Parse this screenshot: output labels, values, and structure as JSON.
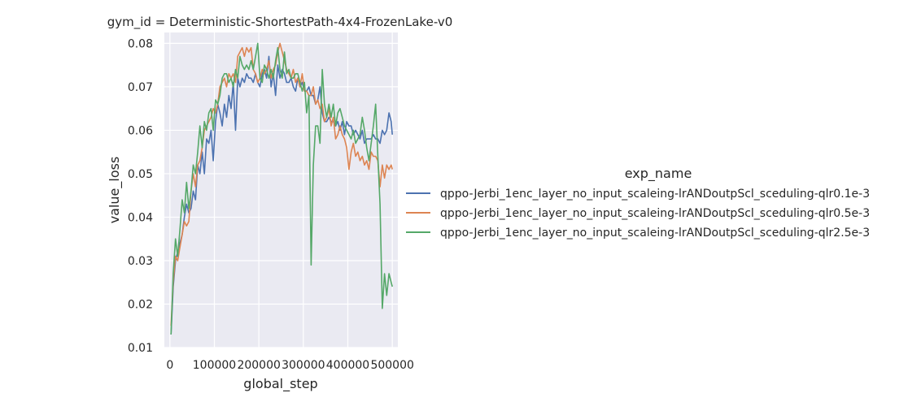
{
  "chart_data": {
    "type": "line",
    "title": "gym_id = Deterministic-ShortestPath-4x4-FrozenLake-v0",
    "xlabel": "global_step",
    "ylabel": "value_loss",
    "xlim": [
      -12500,
      512500
    ],
    "ylim": [
      0.01,
      0.0825
    ],
    "xticks": [
      0,
      100000,
      200000,
      300000,
      400000,
      500000
    ],
    "xtick_labels": [
      "0",
      "100000",
      "200000",
      "300000",
      "400000",
      "500000"
    ],
    "yticks": [
      0.01,
      0.02,
      0.03,
      0.04,
      0.05,
      0.06,
      0.07,
      0.08
    ],
    "ytick_labels": [
      "0.01",
      "0.02",
      "0.03",
      "0.04",
      "0.05",
      "0.06",
      "0.07",
      "0.08"
    ],
    "grid": true,
    "background": "#eaeaf2",
    "legend": {
      "title": "exp_name",
      "placement": "right, outside"
    },
    "series": [
      {
        "name": "qppo-Jerbi_1enc_layer_no_input_scaleing-lrANDoutpScl_sceduling-qlr0.1e-3",
        "color": "#4c72b0",
        "x": [
          2500,
          7500,
          12500,
          17500,
          22500,
          27500,
          32500,
          37500,
          42500,
          47500,
          52500,
          57500,
          62500,
          67500,
          72500,
          77500,
          82500,
          87500,
          92500,
          97500,
          102500,
          107500,
          112500,
          117500,
          122500,
          127500,
          132500,
          137500,
          142500,
          147500,
          152500,
          157500,
          162500,
          167500,
          172500,
          177500,
          182500,
          187500,
          192500,
          197500,
          202500,
          207500,
          212500,
          217500,
          222500,
          227500,
          232500,
          237500,
          242500,
          247500,
          252500,
          257500,
          262500,
          267500,
          272500,
          277500,
          282500,
          287500,
          292500,
          297500,
          302500,
          307500,
          312500,
          317500,
          322500,
          327500,
          332500,
          337500,
          342500,
          347500,
          352500,
          357500,
          362500,
          367500,
          372500,
          377500,
          382500,
          387500,
          392500,
          397500,
          402500,
          407500,
          412500,
          417500,
          422500,
          427500,
          432500,
          437500,
          442500,
          447500,
          452500,
          457500,
          462500,
          467500,
          472500,
          477500,
          482500,
          487500,
          492500,
          497500,
          500000
        ],
        "y": [
          0.013,
          0.024,
          0.03,
          0.032,
          0.034,
          0.036,
          0.04,
          0.043,
          0.041,
          0.042,
          0.046,
          0.044,
          0.052,
          0.05,
          0.055,
          0.05,
          0.058,
          0.057,
          0.06,
          0.053,
          0.062,
          0.066,
          0.064,
          0.061,
          0.066,
          0.063,
          0.068,
          0.065,
          0.071,
          0.06,
          0.072,
          0.07,
          0.072,
          0.071,
          0.073,
          0.072,
          0.072,
          0.071,
          0.073,
          0.071,
          0.07,
          0.073,
          0.074,
          0.072,
          0.077,
          0.07,
          0.073,
          0.068,
          0.075,
          0.072,
          0.074,
          0.073,
          0.071,
          0.071,
          0.072,
          0.07,
          0.069,
          0.072,
          0.07,
          0.071,
          0.069,
          0.069,
          0.07,
          0.068,
          0.068,
          0.066,
          0.067,
          0.07,
          0.064,
          0.062,
          0.062,
          0.063,
          0.062,
          0.062,
          0.061,
          0.062,
          0.06,
          0.062,
          0.059,
          0.062,
          0.061,
          0.061,
          0.059,
          0.06,
          0.059,
          0.058,
          0.06,
          0.057,
          0.058,
          0.058,
          0.058,
          0.059,
          0.058,
          0.058,
          0.057,
          0.06,
          0.059,
          0.06,
          0.064,
          0.062,
          0.059
        ]
      },
      {
        "name": "qppo-Jerbi_1enc_layer_no_input_scaleing-lrANDoutpScl_sceduling-qlr0.5e-3",
        "color": "#dd8452",
        "x": [
          2500,
          7500,
          12500,
          17500,
          22500,
          27500,
          32500,
          37500,
          42500,
          47500,
          52500,
          57500,
          62500,
          67500,
          72500,
          77500,
          82500,
          87500,
          92500,
          97500,
          102500,
          107500,
          112500,
          117500,
          122500,
          127500,
          132500,
          137500,
          142500,
          147500,
          152500,
          157500,
          162500,
          167500,
          172500,
          177500,
          182500,
          187500,
          192500,
          197500,
          202500,
          207500,
          212500,
          217500,
          222500,
          227500,
          232500,
          237500,
          242500,
          247500,
          252500,
          257500,
          262500,
          267500,
          272500,
          277500,
          282500,
          287500,
          292500,
          297500,
          302500,
          307500,
          312500,
          317500,
          322500,
          327500,
          332500,
          337500,
          342500,
          347500,
          352500,
          357500,
          362500,
          367500,
          372500,
          377500,
          382500,
          387500,
          392500,
          397500,
          402500,
          407500,
          412500,
          417500,
          422500,
          427500,
          432500,
          437500,
          442500,
          447500,
          452500,
          457500,
          462500,
          467500,
          472500,
          477500,
          482500,
          487500,
          492500,
          497500,
          500000
        ],
        "y": [
          0.015,
          0.025,
          0.031,
          0.03,
          0.033,
          0.036,
          0.039,
          0.038,
          0.039,
          0.046,
          0.05,
          0.047,
          0.052,
          0.053,
          0.056,
          0.06,
          0.061,
          0.062,
          0.063,
          0.065,
          0.064,
          0.066,
          0.07,
          0.071,
          0.072,
          0.07,
          0.073,
          0.072,
          0.073,
          0.071,
          0.077,
          0.078,
          0.079,
          0.077,
          0.079,
          0.078,
          0.079,
          0.074,
          0.073,
          0.071,
          0.072,
          0.074,
          0.073,
          0.074,
          0.076,
          0.072,
          0.074,
          0.075,
          0.078,
          0.08,
          0.078,
          0.076,
          0.074,
          0.073,
          0.072,
          0.074,
          0.071,
          0.072,
          0.07,
          0.073,
          0.069,
          0.069,
          0.068,
          0.068,
          0.07,
          0.066,
          0.067,
          0.065,
          0.066,
          0.062,
          0.063,
          0.065,
          0.061,
          0.063,
          0.058,
          0.059,
          0.061,
          0.059,
          0.058,
          0.056,
          0.051,
          0.055,
          0.057,
          0.054,
          0.055,
          0.053,
          0.054,
          0.052,
          0.053,
          0.051,
          0.055,
          0.054,
          0.054,
          0.053,
          0.047,
          0.052,
          0.049,
          0.052,
          0.051,
          0.052,
          0.051
        ]
      },
      {
        "name": "qppo-Jerbi_1enc_layer_no_input_scaleing-lrANDoutpScl_sceduling-qlr2.5e-3",
        "color": "#55a868",
        "x": [
          2500,
          7500,
          12500,
          17500,
          22500,
          27500,
          32500,
          37500,
          42500,
          47500,
          52500,
          57500,
          62500,
          67500,
          72500,
          77500,
          82500,
          87500,
          92500,
          97500,
          102500,
          107500,
          112500,
          117500,
          122500,
          127500,
          132500,
          137500,
          142500,
          147500,
          152500,
          157500,
          162500,
          167500,
          172500,
          177500,
          182500,
          187500,
          192500,
          197500,
          202500,
          207500,
          212500,
          217500,
          222500,
          227500,
          232500,
          237500,
          242500,
          247500,
          252500,
          257500,
          262500,
          267500,
          272500,
          277500,
          282500,
          287500,
          292500,
          297500,
          302500,
          307500,
          312500,
          317500,
          322500,
          327500,
          332500,
          337500,
          342500,
          347500,
          352500,
          357500,
          362500,
          367500,
          372500,
          377500,
          382500,
          387500,
          392500,
          397500,
          402500,
          407500,
          412500,
          417500,
          422500,
          427500,
          432500,
          437500,
          442500,
          447500,
          452500,
          457500,
          462500,
          467500,
          472500,
          477500,
          482500,
          487500,
          492500,
          497500,
          500000
        ],
        "y": [
          0.013,
          0.027,
          0.035,
          0.031,
          0.037,
          0.044,
          0.041,
          0.048,
          0.042,
          0.046,
          0.052,
          0.05,
          0.055,
          0.061,
          0.056,
          0.062,
          0.06,
          0.064,
          0.065,
          0.06,
          0.067,
          0.066,
          0.068,
          0.072,
          0.073,
          0.073,
          0.071,
          0.072,
          0.07,
          0.074,
          0.072,
          0.077,
          0.075,
          0.074,
          0.075,
          0.074,
          0.076,
          0.074,
          0.077,
          0.08,
          0.072,
          0.071,
          0.075,
          0.074,
          0.072,
          0.074,
          0.072,
          0.076,
          0.079,
          0.074,
          0.072,
          0.078,
          0.073,
          0.074,
          0.072,
          0.072,
          0.073,
          0.073,
          0.071,
          0.069,
          0.071,
          0.064,
          0.068,
          0.029,
          0.052,
          0.061,
          0.061,
          0.057,
          0.074,
          0.066,
          0.063,
          0.066,
          0.063,
          0.066,
          0.061,
          0.064,
          0.065,
          0.063,
          0.061,
          0.06,
          0.059,
          0.058,
          0.06,
          0.057,
          0.058,
          0.059,
          0.063,
          0.06,
          0.056,
          0.053,
          0.057,
          0.061,
          0.066,
          0.054,
          0.043,
          0.019,
          0.027,
          0.022,
          0.027,
          0.025,
          0.024
        ]
      }
    ]
  }
}
